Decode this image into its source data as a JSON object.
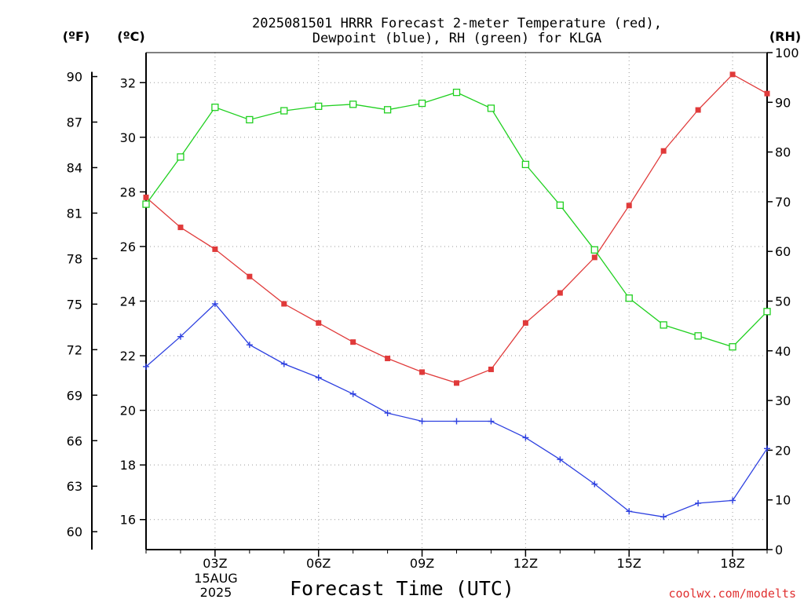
{
  "chart_data": {
    "type": "line",
    "title_line1": "2025081501 HRRR Forecast 2-meter Temperature (red),",
    "title_line2": "Dewpoint (blue), RH (green) for KLGA",
    "xlabel": "Forecast Time (UTC)",
    "date_label_line1": "15AUG",
    "date_label_line2": "2025",
    "left_outer_unit": "(ºF)",
    "left_inner_unit": "(ºC)",
    "right_unit": "(RH)",
    "x_hours": [
      1,
      2,
      3,
      4,
      5,
      6,
      7,
      8,
      9,
      10,
      11,
      12,
      13,
      14,
      15,
      16,
      17,
      18,
      19
    ],
    "x_ticks": [
      "03Z",
      "06Z",
      "09Z",
      "12Z",
      "15Z",
      "18Z"
    ],
    "x_tick_hours": [
      3,
      6,
      9,
      12,
      15,
      18
    ],
    "x_range": [
      1,
      19
    ],
    "celsius_ticks": [
      16,
      18,
      20,
      22,
      24,
      26,
      28,
      30,
      32
    ],
    "celsius_range": [
      14.9,
      33.1
    ],
    "fahrenheit_ticks": [
      60,
      63,
      66,
      69,
      72,
      75,
      78,
      81,
      84,
      87,
      90
    ],
    "rh_ticks": [
      0,
      10,
      20,
      30,
      40,
      50,
      60,
      70,
      80,
      90,
      100
    ],
    "rh_range": [
      0,
      100
    ],
    "grid": "on",
    "series": [
      {
        "name": "Temperature",
        "axis": "celsius",
        "color": "#e03a3a",
        "marker": "filled-square",
        "values": [
          27.8,
          26.7,
          25.9,
          24.9,
          23.9,
          23.2,
          22.5,
          21.9,
          21.4,
          21.0,
          21.5,
          23.2,
          24.3,
          25.6,
          27.5,
          29.5,
          31.0,
          32.3,
          31.6
        ]
      },
      {
        "name": "Dewpoint",
        "axis": "celsius",
        "color": "#2d40e0",
        "marker": "plus",
        "values": [
          21.6,
          22.7,
          23.9,
          22.4,
          21.7,
          21.2,
          20.6,
          19.9,
          19.6,
          19.6,
          19.6,
          19.0,
          18.2,
          17.3,
          16.3,
          16.1,
          16.6,
          16.7,
          18.6
        ]
      },
      {
        "name": "RH",
        "axis": "rh",
        "color": "#20d020",
        "marker": "open-square",
        "values": [
          69.5,
          79,
          89,
          86.5,
          88.3,
          89.2,
          89.6,
          88.5,
          89.8,
          92,
          88.8,
          77.5,
          69.3,
          60.3,
          50.6,
          45.2,
          43,
          40.8,
          47.9
        ]
      }
    ]
  },
  "footer": {
    "credit": "coolwx.com/modelts"
  }
}
